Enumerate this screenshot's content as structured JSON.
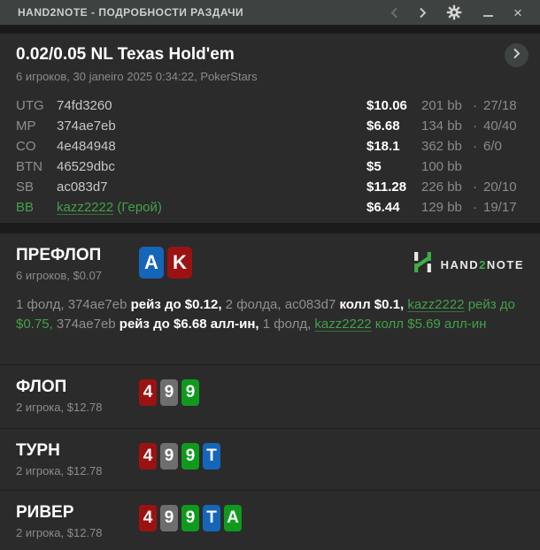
{
  "titlebar": {
    "title": "HAND2NOTE - ПОДРОБНОСТИ РАЗДАЧИ",
    "icons": [
      "back-chevron",
      "forward-chevron",
      "settings-gear",
      "minimize",
      "close"
    ]
  },
  "header": {
    "title": "0.02/0.05 NL Texas Hold'em",
    "subtitle": "6 игроков, 30 janeiro 2025 0:34:22, PokerStars"
  },
  "players": [
    {
      "seat": "UTG",
      "name": "74fd3260",
      "suffix": "",
      "stack": "$10.06",
      "bb": "201 bb",
      "stats": "27/18",
      "hero": false
    },
    {
      "seat": "MP",
      "name": "374ae7eb",
      "suffix": "",
      "stack": "$6.68",
      "bb": "134 bb",
      "stats": "40/40",
      "hero": false
    },
    {
      "seat": "CO",
      "name": "4e484948",
      "suffix": "",
      "stack": "$18.1",
      "bb": "362 bb",
      "stats": "6/0",
      "hero": false
    },
    {
      "seat": "BTN",
      "name": "46529dbc",
      "suffix": "",
      "stack": "$5",
      "bb": "100 bb",
      "stats": "",
      "hero": false
    },
    {
      "seat": "SB",
      "name": "ac083d7",
      "suffix": "",
      "stack": "$11.28",
      "bb": "226 bb",
      "stats": "20/10",
      "hero": false
    },
    {
      "seat": "BB",
      "name": "kazz2222",
      "suffix": " (Герой)",
      "stack": "$6.44",
      "bb": "129 bb",
      "stats": "19/17",
      "hero": true
    }
  ],
  "preflop": {
    "title": "ПРЕФЛОП",
    "subtitle": "6 игроков, $0.07",
    "cards": [
      {
        "rank": "A",
        "suit": "diamond"
      },
      {
        "rank": "K",
        "suit": "heart"
      }
    ],
    "actions": [
      {
        "text": "1 фолд, 374ae7eb ",
        "style": "muted"
      },
      {
        "text": "рейз до $0.12,",
        "style": "bold"
      },
      {
        "text": " 2 фолда, ac083d7 ",
        "style": "muted"
      },
      {
        "text": "колл $0.1,",
        "style": "bold"
      },
      {
        "text": " ",
        "style": "muted"
      },
      {
        "text": "kazz2222",
        "style": "hero-link"
      },
      {
        "text": " рейз до $0.75,",
        "style": "hero"
      },
      {
        "text": " 374ae7eb ",
        "style": "muted"
      },
      {
        "text": "рейз до $6.68 алл-ин,",
        "style": "bold"
      },
      {
        "text": " 1 фолд, ",
        "style": "muted"
      },
      {
        "text": "kazz2222",
        "style": "hero-link"
      },
      {
        "text": " колл $5.69 алл-ин",
        "style": "hero"
      }
    ]
  },
  "logo": {
    "part1": "HAND",
    "part2": "2",
    "part3": "NOTE"
  },
  "streets": [
    {
      "id": "flop",
      "title": "ФЛОП",
      "subtitle": "2 игрока, $12.78",
      "cards": [
        {
          "rank": "4",
          "suit": "heart"
        },
        {
          "rank": "9",
          "suit": "spade"
        },
        {
          "rank": "9",
          "suit": "club"
        }
      ]
    },
    {
      "id": "turn",
      "title": "ТУРН",
      "subtitle": "2 игрока, $12.78",
      "cards": [
        {
          "rank": "4",
          "suit": "heart"
        },
        {
          "rank": "9",
          "suit": "spade"
        },
        {
          "rank": "9",
          "suit": "club"
        },
        {
          "rank": "T",
          "suit": "diamond"
        }
      ]
    },
    {
      "id": "river",
      "title": "РИВЕР",
      "subtitle": "2 игрока, $12.78",
      "cards": [
        {
          "rank": "4",
          "suit": "heart"
        },
        {
          "rank": "9",
          "suit": "spade"
        },
        {
          "rank": "9",
          "suit": "club"
        },
        {
          "rank": "T",
          "suit": "diamond"
        },
        {
          "rank": "A",
          "suit": "club"
        }
      ]
    }
  ],
  "colors": {
    "heart": "#9b1212",
    "spade": "#6e6e6e",
    "club": "#0f9a1e",
    "diamond": "#1565b8",
    "hero_green": "#43a047",
    "titlebar": "#3e4241",
    "panel": "#2b2b2b",
    "logo_green": "#3fae49"
  }
}
